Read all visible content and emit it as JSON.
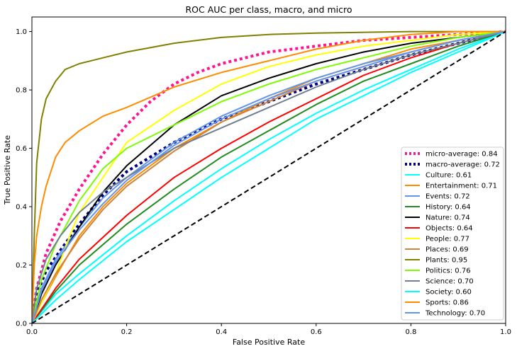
{
  "chart_data": {
    "type": "line",
    "title": "ROC AUC per class, macro, and micro",
    "xlabel": "False Positive Rate",
    "ylabel": "True Positive Rate",
    "xlim": [
      0.0,
      1.0
    ],
    "ylim": [
      0.0,
      1.05
    ],
    "xticks": [
      0.0,
      0.2,
      0.4,
      0.6,
      0.8,
      1.0
    ],
    "yticks": [
      0.0,
      0.2,
      0.4,
      0.6,
      0.8,
      1.0
    ],
    "grid": false,
    "legend_position": "lower-right",
    "series": [
      {
        "name": "micro-average: 0.84",
        "color": "#ff1493",
        "style": "dotted",
        "width": 4,
        "x": [
          0,
          0.01,
          0.03,
          0.06,
          0.1,
          0.15,
          0.2,
          0.25,
          0.3,
          0.35,
          0.4,
          0.5,
          0.6,
          0.7,
          0.8,
          0.9,
          1.0
        ],
        "y": [
          0,
          0.12,
          0.24,
          0.35,
          0.46,
          0.58,
          0.68,
          0.76,
          0.82,
          0.86,
          0.89,
          0.93,
          0.95,
          0.97,
          0.98,
          0.99,
          1.0
        ]
      },
      {
        "name": "macro-average: 0.72",
        "color": "#000080",
        "style": "dotted",
        "width": 4,
        "x": [
          0,
          0.01,
          0.03,
          0.06,
          0.1,
          0.15,
          0.2,
          0.3,
          0.4,
          0.5,
          0.6,
          0.7,
          0.8,
          0.9,
          1.0
        ],
        "y": [
          0,
          0.1,
          0.18,
          0.25,
          0.34,
          0.44,
          0.52,
          0.62,
          0.7,
          0.76,
          0.82,
          0.87,
          0.92,
          0.96,
          1.0
        ]
      },
      {
        "name": "Culture: 0.61",
        "color": "#00ffff",
        "style": "solid",
        "width": 2,
        "x": [
          0,
          0.05,
          0.1,
          0.2,
          0.3,
          0.4,
          0.5,
          0.6,
          0.7,
          0.8,
          0.9,
          1.0
        ],
        "y": [
          0,
          0.1,
          0.17,
          0.3,
          0.42,
          0.53,
          0.63,
          0.72,
          0.8,
          0.87,
          0.94,
          1.0
        ]
      },
      {
        "name": "Entertainment: 0.71",
        "color": "#ff8c00",
        "style": "solid",
        "width": 2,
        "x": [
          0,
          0.02,
          0.05,
          0.1,
          0.15,
          0.2,
          0.3,
          0.4,
          0.5,
          0.6,
          0.7,
          0.8,
          0.9,
          1.0
        ],
        "y": [
          0,
          0.07,
          0.16,
          0.3,
          0.4,
          0.48,
          0.6,
          0.69,
          0.77,
          0.84,
          0.89,
          0.94,
          0.97,
          1.0
        ]
      },
      {
        "name": "Events: 0.72",
        "color": "#6495ed",
        "style": "solid",
        "width": 2,
        "x": [
          0,
          0.02,
          0.05,
          0.1,
          0.15,
          0.2,
          0.3,
          0.4,
          0.5,
          0.6,
          0.7,
          0.8,
          0.9,
          1.0
        ],
        "y": [
          0,
          0.12,
          0.22,
          0.33,
          0.43,
          0.5,
          0.62,
          0.71,
          0.78,
          0.84,
          0.89,
          0.93,
          0.97,
          1.0
        ]
      },
      {
        "name": "History: 0.64",
        "color": "#228b22",
        "style": "solid",
        "width": 2,
        "x": [
          0,
          0.05,
          0.1,
          0.2,
          0.3,
          0.4,
          0.5,
          0.6,
          0.7,
          0.8,
          0.9,
          1.0
        ],
        "y": [
          0,
          0.11,
          0.2,
          0.34,
          0.46,
          0.57,
          0.66,
          0.75,
          0.83,
          0.89,
          0.95,
          1.0
        ]
      },
      {
        "name": "Nature: 0.74",
        "color": "#000000",
        "style": "solid",
        "width": 2,
        "x": [
          0,
          0.02,
          0.05,
          0.1,
          0.15,
          0.2,
          0.3,
          0.4,
          0.5,
          0.6,
          0.7,
          0.8,
          0.9,
          1.0
        ],
        "y": [
          0,
          0.1,
          0.2,
          0.33,
          0.45,
          0.54,
          0.68,
          0.78,
          0.84,
          0.89,
          0.93,
          0.96,
          0.98,
          1.0
        ]
      },
      {
        "name": "Objects: 0.64",
        "color": "#ff0000",
        "style": "solid",
        "width": 2,
        "x": [
          0,
          0.05,
          0.1,
          0.2,
          0.3,
          0.4,
          0.5,
          0.6,
          0.7,
          0.8,
          0.9,
          1.0
        ],
        "y": [
          0,
          0.12,
          0.22,
          0.37,
          0.5,
          0.6,
          0.69,
          0.77,
          0.85,
          0.91,
          0.96,
          1.0
        ]
      },
      {
        "name": "People: 0.77",
        "color": "#ffff00",
        "style": "solid",
        "width": 2,
        "x": [
          0,
          0.02,
          0.05,
          0.08,
          0.1,
          0.15,
          0.2,
          0.3,
          0.4,
          0.5,
          0.6,
          0.7,
          0.8,
          0.9,
          1.0
        ],
        "y": [
          0,
          0.07,
          0.17,
          0.3,
          0.38,
          0.5,
          0.62,
          0.73,
          0.82,
          0.88,
          0.92,
          0.95,
          0.97,
          0.99,
          1.0
        ]
      },
      {
        "name": "Places: 0.69",
        "color": "#cd853f",
        "style": "solid",
        "width": 2,
        "x": [
          0,
          0.02,
          0.05,
          0.1,
          0.15,
          0.2,
          0.3,
          0.4,
          0.5,
          0.6,
          0.7,
          0.8,
          0.9,
          1.0
        ],
        "y": [
          0,
          0.08,
          0.17,
          0.29,
          0.39,
          0.47,
          0.59,
          0.69,
          0.76,
          0.83,
          0.88,
          0.93,
          0.97,
          1.0
        ]
      },
      {
        "name": "Plants: 0.95",
        "color": "#808000",
        "style": "solid",
        "width": 2,
        "x": [
          0,
          0.005,
          0.01,
          0.02,
          0.03,
          0.05,
          0.07,
          0.1,
          0.15,
          0.2,
          0.3,
          0.4,
          0.5,
          0.6,
          0.8,
          1.0
        ],
        "y": [
          0,
          0.3,
          0.55,
          0.7,
          0.77,
          0.83,
          0.87,
          0.89,
          0.91,
          0.93,
          0.96,
          0.98,
          0.99,
          0.995,
          1.0,
          1.0
        ]
      },
      {
        "name": "Politics: 0.76",
        "color": "#7cfc00",
        "style": "solid",
        "width": 2,
        "x": [
          0,
          0.02,
          0.05,
          0.1,
          0.15,
          0.2,
          0.3,
          0.4,
          0.5,
          0.6,
          0.7,
          0.8,
          0.9,
          1.0
        ],
        "y": [
          0,
          0.15,
          0.27,
          0.42,
          0.53,
          0.6,
          0.68,
          0.76,
          0.82,
          0.87,
          0.91,
          0.95,
          0.98,
          1.0
        ]
      },
      {
        "name": "Science: 0.70",
        "color": "#708090",
        "style": "solid",
        "width": 2,
        "x": [
          0,
          0.01,
          0.03,
          0.06,
          0.1,
          0.15,
          0.2,
          0.3,
          0.4,
          0.5,
          0.6,
          0.7,
          0.8,
          0.9,
          1.0
        ],
        "y": [
          0,
          0.12,
          0.22,
          0.3,
          0.38,
          0.45,
          0.5,
          0.6,
          0.67,
          0.74,
          0.81,
          0.87,
          0.92,
          0.96,
          1.0
        ]
      },
      {
        "name": "Society: 0.60",
        "color": "#00ffff",
        "style": "solid",
        "width": 2,
        "x": [
          0,
          0.05,
          0.1,
          0.2,
          0.3,
          0.4,
          0.5,
          0.6,
          0.7,
          0.8,
          0.9,
          1.0
        ],
        "y": [
          0,
          0.08,
          0.15,
          0.28,
          0.39,
          0.5,
          0.6,
          0.7,
          0.78,
          0.86,
          0.93,
          1.0
        ]
      },
      {
        "name": "Sports: 0.86",
        "color": "#ff8c00",
        "style": "solid",
        "width": 2,
        "x": [
          0,
          0.005,
          0.01,
          0.02,
          0.03,
          0.05,
          0.07,
          0.1,
          0.15,
          0.2,
          0.3,
          0.4,
          0.5,
          0.6,
          0.7,
          0.8,
          0.9,
          1.0
        ],
        "y": [
          0,
          0.2,
          0.3,
          0.4,
          0.47,
          0.57,
          0.62,
          0.66,
          0.71,
          0.74,
          0.81,
          0.86,
          0.9,
          0.94,
          0.97,
          0.99,
          1.0,
          1.0
        ]
      },
      {
        "name": "Technology: 0.70",
        "color": "#6495ed",
        "style": "solid",
        "width": 2,
        "x": [
          0,
          0.02,
          0.05,
          0.1,
          0.15,
          0.2,
          0.3,
          0.4,
          0.5,
          0.6,
          0.7,
          0.8,
          0.9,
          1.0
        ],
        "y": [
          0,
          0.11,
          0.21,
          0.32,
          0.41,
          0.49,
          0.61,
          0.7,
          0.77,
          0.83,
          0.88,
          0.93,
          0.97,
          1.0
        ]
      },
      {
        "name": "",
        "color": "#000000",
        "style": "dashed",
        "width": 2,
        "x": [
          0,
          1
        ],
        "y": [
          0,
          1
        ]
      }
    ]
  }
}
